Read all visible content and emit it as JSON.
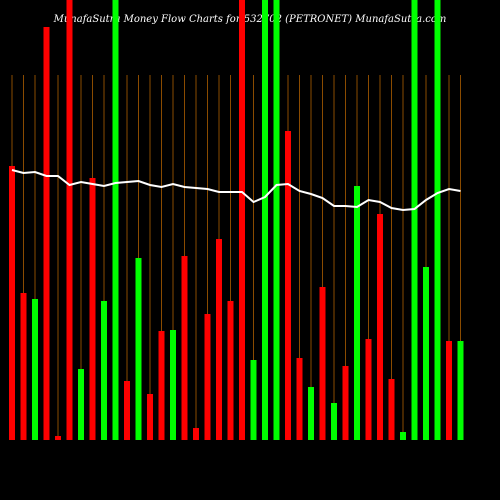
{
  "chart_data": {
    "type": "bar",
    "title": "MunafaSutra Money Flow Charts for 532702 (PETRONET) MunafaSutra.com",
    "ylim": [
      0,
      440
    ],
    "grid": true,
    "grid_color": "#8a4b00",
    "line_color": "#ffffff",
    "series": [
      {
        "name": "Money Flow",
        "values": [
          274,
          147,
          141,
          413,
          4,
          440,
          71,
          262,
          139,
          440,
          59,
          182,
          46,
          109,
          110,
          184,
          12,
          126,
          201,
          139,
          440,
          80,
          440,
          440,
          309,
          82,
          53,
          153,
          37,
          74,
          254,
          101,
          226,
          61,
          8,
          440,
          173,
          440,
          99,
          99
        ],
        "colors": [
          "#ff0000",
          "#ff0000",
          "#00ff00",
          "#ff0000",
          "#ff0000",
          "#ff0000",
          "#00ff00",
          "#ff0000",
          "#00ff00",
          "#00ff00",
          "#ff0000",
          "#00ff00",
          "#ff0000",
          "#ff0000",
          "#00ff00",
          "#ff0000",
          "#ff0000",
          "#ff0000",
          "#ff0000",
          "#ff0000",
          "#ff0000",
          "#00ff00",
          "#00ff00",
          "#00ff00",
          "#ff0000",
          "#ff0000",
          "#00ff00",
          "#ff0000",
          "#00ff00",
          "#ff0000",
          "#00ff00",
          "#ff0000",
          "#ff0000",
          "#ff0000",
          "#00ff00",
          "#00ff00",
          "#00ff00",
          "#00ff00",
          "#ff0000",
          "#00ff00"
        ]
      },
      {
        "name": "Price",
        "values": [
          270,
          267,
          268,
          264,
          264,
          255,
          258,
          256,
          254,
          257,
          258,
          259,
          255,
          253,
          256,
          253,
          252,
          251,
          248,
          248,
          248,
          238,
          243,
          255,
          256,
          249,
          246,
          242,
          234,
          234,
          233,
          240,
          238,
          232,
          230,
          231,
          240,
          247,
          251,
          249
        ]
      }
    ]
  }
}
